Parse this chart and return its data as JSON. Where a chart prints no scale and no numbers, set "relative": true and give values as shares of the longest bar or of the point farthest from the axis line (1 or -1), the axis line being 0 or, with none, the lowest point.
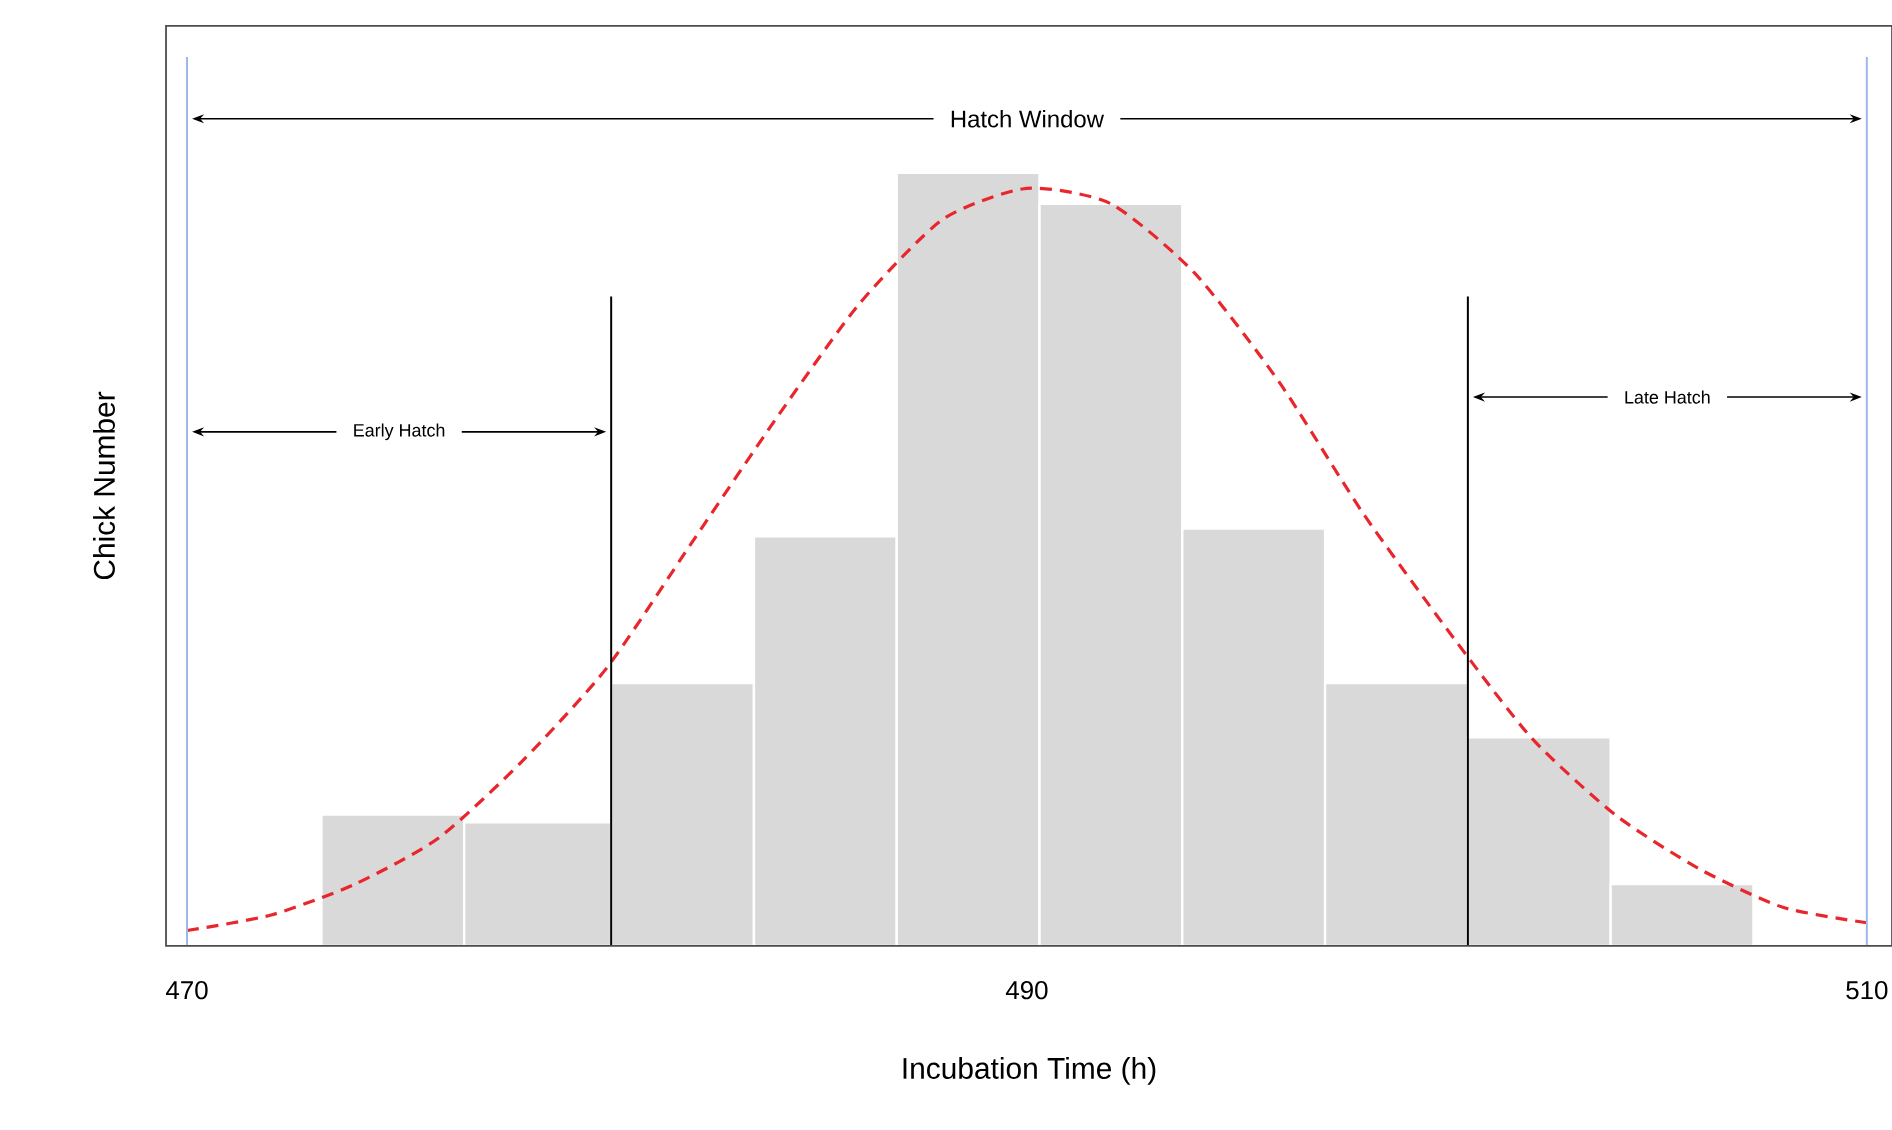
{
  "chart_data": {
    "type": "histogram",
    "relative": true,
    "xlabel": "Incubation Time (h)",
    "ylabel": "Chick Number",
    "xlim": [
      469.5,
      510.6
    ],
    "xticks": [
      470,
      490,
      510
    ],
    "grid": false,
    "series": [
      {
        "color": "#d9d9d9",
        "bins": [
          473.2,
          476.6,
          480.1,
          483.5,
          486.9,
          490.3,
          493.7,
          497.1,
          500.5,
          503.9,
          507.3
        ],
        "values": [
          0.17,
          0.16,
          0.34,
          0.53,
          1,
          0.96,
          0.54,
          0.34,
          0.27,
          0.08
        ]
      },
      {
        "type": "line",
        "color": "#e8262b",
        "line_style": "dashed",
        "x": [
          470,
          472,
          474,
          476,
          478,
          480,
          482,
          484,
          486,
          488,
          490,
          492,
          494,
          496,
          498,
          500,
          502,
          504,
          506,
          508,
          510
        ],
        "values": [
          0.02,
          0.04,
          0.08,
          0.14,
          0.24,
          0.36,
          0.52,
          0.68,
          0.83,
          0.94,
          0.98,
          0.96,
          0.87,
          0.73,
          0.56,
          0.41,
          0.27,
          0.17,
          0.1,
          0.05,
          0.03
        ]
      }
    ],
    "ref_lines": [
      {
        "axis": "x",
        "value": 470,
        "color": "#9db8e6"
      },
      {
        "axis": "x",
        "value": 510,
        "color": "#9db8e6"
      },
      {
        "axis": "x",
        "value": 480.1,
        "color": "#000000"
      },
      {
        "axis": "x",
        "value": 500.5,
        "color": "#000000"
      }
    ],
    "annotations": [
      "Hatch Window",
      "Early Hatch",
      "Late Hatch"
    ]
  }
}
